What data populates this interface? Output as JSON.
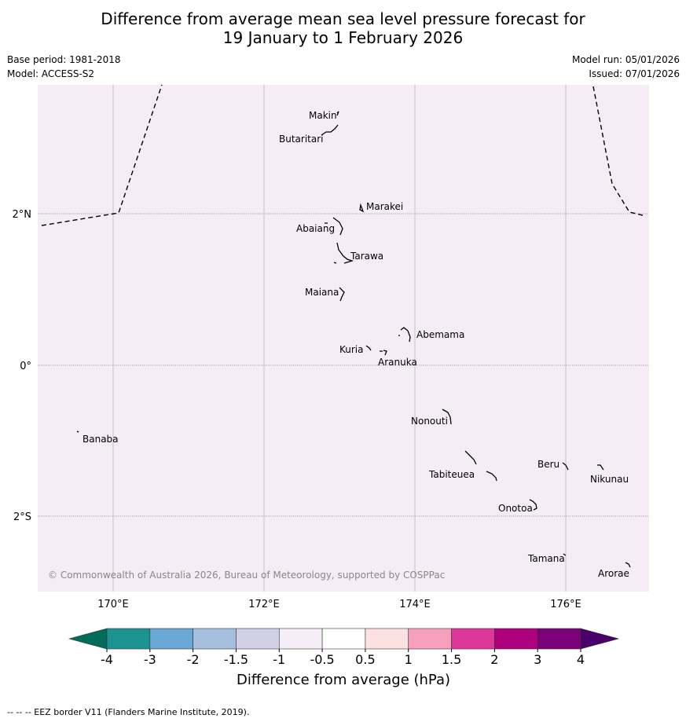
{
  "title": {
    "line1": "Difference from average mean sea level pressure forecast for",
    "line2": "19 January to 1 February 2026"
  },
  "meta": {
    "base_period": "Base period: 1981-2018",
    "model": "Model: ACCESS-S2",
    "model_run": "Model run: 05/01/2026",
    "issued": "Issued: 07/01/2026"
  },
  "map": {
    "background_color": "#f5ecf5",
    "longitude_labels": [
      "170°E",
      "172°E",
      "174°E",
      "176°E"
    ],
    "latitude_labels": [
      "2°N",
      "0°",
      "2°S"
    ],
    "copyright": "© Commonwealth of Australia 2026, Bureau of Meteorology, supported by COSPPac",
    "places": [
      "Makin",
      "Butaritari",
      "Marakei",
      "Abaiang",
      "Tarawa",
      "Maiana",
      "Abemama",
      "Kuria",
      "Aranuka",
      "Banaba",
      "Nonouti",
      "Tabiteuea",
      "Beru",
      "Nikunau",
      "Onotoa",
      "Tamana",
      "Arorae"
    ]
  },
  "colorbar": {
    "label": "Difference from average (hPa)",
    "ticks": [
      "-4",
      "-3",
      "-2",
      "-1.5",
      "-1",
      "-0.5",
      "0.5",
      "1",
      "1.5",
      "2",
      "3",
      "4"
    ],
    "colors": [
      "#1a9391",
      "#6aa9d5",
      "#a6bfde",
      "#d1d0e6",
      "#f5eef7",
      "#ffffff",
      "#fde0e0",
      "#f6a0bd",
      "#dd3799",
      "#ae017e",
      "#7a0177"
    ],
    "low_extend_color": "#016c59",
    "high_extend_color": "#49006a"
  },
  "footer": "--  --  -- EEZ border V11 (Flanders Marine Institute, 2019)."
}
